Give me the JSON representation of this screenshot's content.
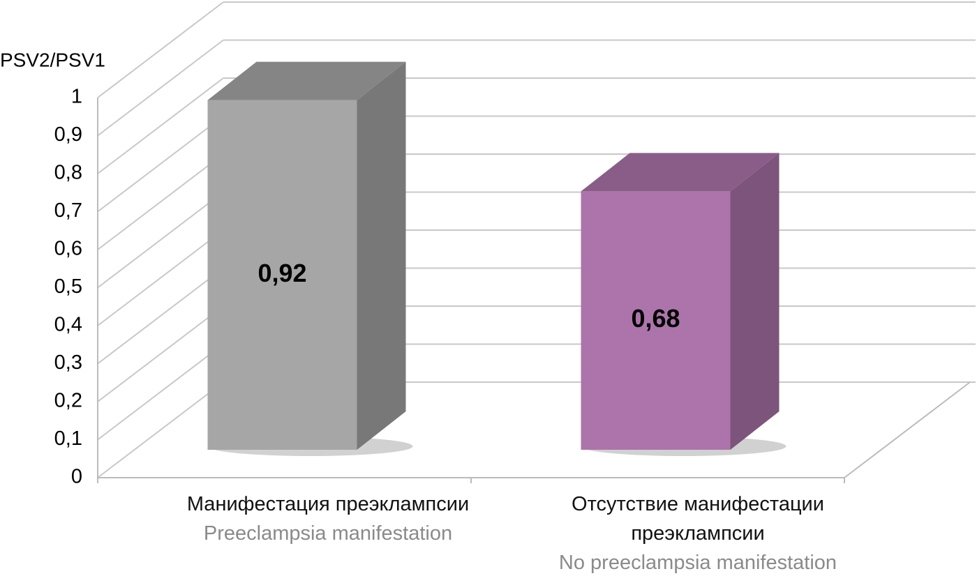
{
  "chart_data": {
    "type": "bar3d",
    "ylabel": "PSV2/PSV1",
    "categories": [
      "Манифестация преэклампсии",
      "Отсутствие манифестации преэклампсии"
    ],
    "category_translations": [
      "Preeclampsia manifestation",
      "No preeclampsia manifestation"
    ],
    "values": [
      0.92,
      0.68
    ],
    "value_labels": [
      "0,92",
      "0,68"
    ],
    "colors": [
      "#a6a6a6",
      "#ad74ab"
    ],
    "ylim": [
      0,
      1
    ],
    "yticks": [
      0,
      {
        "value": 0.1,
        "label": "0,1"
      },
      {
        "value": 0.2,
        "label": "0,2"
      },
      {
        "value": 0.3,
        "label": "0,3"
      },
      {
        "value": 0.4,
        "label": "0,4"
      },
      {
        "value": 0.5,
        "label": "0,5"
      },
      {
        "value": 0.6,
        "label": "0,6"
      },
      {
        "value": 0.7,
        "label": "0,7"
      },
      {
        "value": 0.8,
        "label": "0,8"
      },
      {
        "value": 0.9,
        "label": "0,9"
      },
      1
    ],
    "grid": true
  }
}
